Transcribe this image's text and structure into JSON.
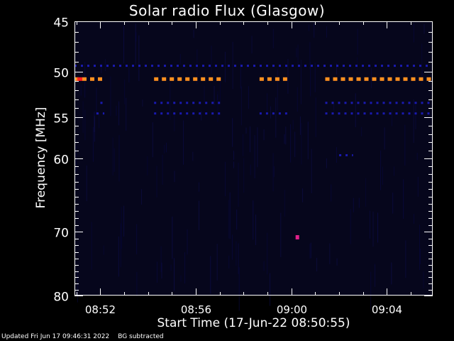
{
  "chart_data": {
    "type": "heatmap",
    "title": "Solar radio Flux (Glasgow)",
    "xlabel": "Start Time (17-Jun-22 08:50:55)",
    "ylabel": "Frequency [MHz]",
    "xlim": [
      "08:50:55",
      "09:05:55"
    ],
    "ylim": [
      80,
      45
    ],
    "y_scale": "log",
    "grid": false,
    "x_ticks": [
      "08:52",
      "08:56",
      "09:00",
      "09:04"
    ],
    "y_ticks": [
      45,
      50,
      55,
      60,
      70,
      80
    ],
    "colors": {
      "background": "#000000",
      "field": "#06061c",
      "weak": "#1a1ab0",
      "strong": "#ff9020",
      "peak": "#ff2020",
      "spike": "#e0208a"
    },
    "bands": [
      {
        "freq_mhz": 49.4,
        "intensity": "weak",
        "segments": [
          [
            "08:50:55",
            "09:05:55"
          ]
        ]
      },
      {
        "freq_mhz": 50.8,
        "intensity": "strong",
        "segments": [
          [
            "08:50:55",
            "08:52:10"
          ],
          [
            "08:54:15",
            "08:57:05"
          ],
          [
            "08:58:40",
            "08:59:55"
          ],
          [
            "09:01:25",
            "09:05:55"
          ]
        ]
      },
      {
        "freq_mhz": 53.4,
        "intensity": "weak",
        "segments": [
          [
            "08:52:00",
            "08:52:10"
          ],
          [
            "08:54:15",
            "08:57:05"
          ],
          [
            "09:01:25",
            "09:05:55"
          ]
        ]
      },
      {
        "freq_mhz": 54.6,
        "intensity": "weak",
        "segments": [
          [
            "08:51:50",
            "08:52:10"
          ],
          [
            "08:54:15",
            "08:57:05"
          ],
          [
            "08:58:40",
            "08:59:55"
          ],
          [
            "09:01:25",
            "09:05:55"
          ]
        ]
      },
      {
        "freq_mhz": 59.6,
        "intensity": "weak",
        "segments": [
          [
            "09:02:00",
            "09:02:35"
          ]
        ]
      }
    ],
    "spikes": [
      {
        "time": "09:00:15",
        "freq_mhz": 70.8,
        "intensity": "spike"
      }
    ]
  },
  "footer": {
    "updated": "Updated Fri Jun 17 09:46:31 2022",
    "note": "BG subtracted"
  }
}
